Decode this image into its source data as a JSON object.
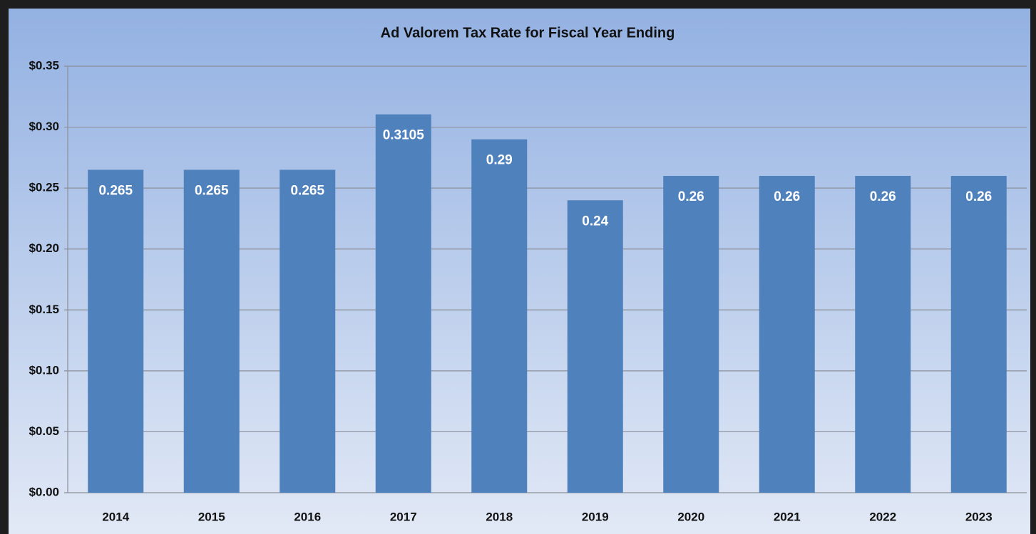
{
  "chart_data": {
    "type": "bar",
    "title": "Ad Valorem Tax Rate for Fiscal Year Ending",
    "categories": [
      "2014",
      "2015",
      "2016",
      "2017",
      "2018",
      "2019",
      "2020",
      "2021",
      "2022",
      "2023"
    ],
    "values": [
      0.265,
      0.265,
      0.265,
      0.3105,
      0.29,
      0.24,
      0.26,
      0.26,
      0.26,
      0.26
    ],
    "color": "#4f81bd",
    "ylim": [
      0,
      0.35
    ],
    "yticks": [
      {
        "value": 0,
        "label": "$0.00"
      },
      {
        "value": 0.05,
        "label": "$0.05"
      },
      {
        "value": 0.1,
        "label": "$0.10"
      },
      {
        "value": 0.15,
        "label": "$0.15"
      },
      {
        "value": 0.2,
        "label": "$0.20"
      },
      {
        "value": 0.25,
        "label": "$0.25"
      },
      {
        "value": 0.3,
        "label": "$0.30"
      },
      {
        "value": 0.35,
        "label": "$0.35"
      }
    ],
    "grid": true
  }
}
